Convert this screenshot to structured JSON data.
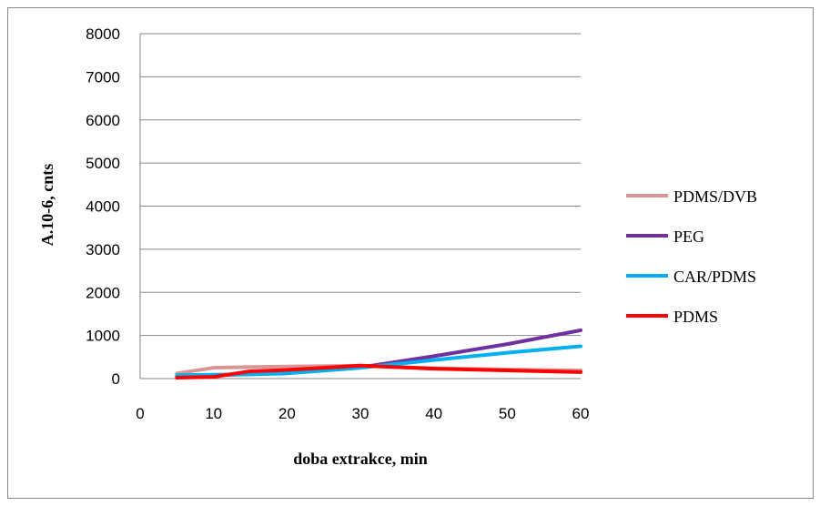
{
  "chart_data": {
    "type": "line",
    "title": "",
    "xlabel": "doba extrakce, min",
    "ylabel": "A.10-6, cnts",
    "xlim": [
      0,
      60
    ],
    "ylim": [
      0,
      8000
    ],
    "xticks": [
      0,
      10,
      20,
      30,
      40,
      50,
      60
    ],
    "yticks": [
      0,
      1000,
      2000,
      3000,
      4000,
      5000,
      6000,
      7000,
      8000
    ],
    "grid": "horizontal",
    "legend": "right",
    "x": [
      5,
      10,
      15,
      20,
      30,
      40,
      50,
      60
    ],
    "series": [
      {
        "name": "PDMS/DVB",
        "color": "#d99694",
        "values": [
          120,
          250,
          270,
          280,
          300,
          240,
          210,
          190
        ]
      },
      {
        "name": "PEG",
        "color": "#7030a0",
        "values": [
          60,
          80,
          100,
          130,
          260,
          520,
          800,
          1120
        ]
      },
      {
        "name": "CAR/PDMS",
        "color": "#00b0f0",
        "values": [
          80,
          90,
          100,
          120,
          250,
          430,
          600,
          750
        ]
      },
      {
        "name": "PDMS",
        "color": "#ff0000",
        "values": [
          20,
          40,
          170,
          200,
          300,
          230,
          190,
          150
        ]
      }
    ]
  }
}
